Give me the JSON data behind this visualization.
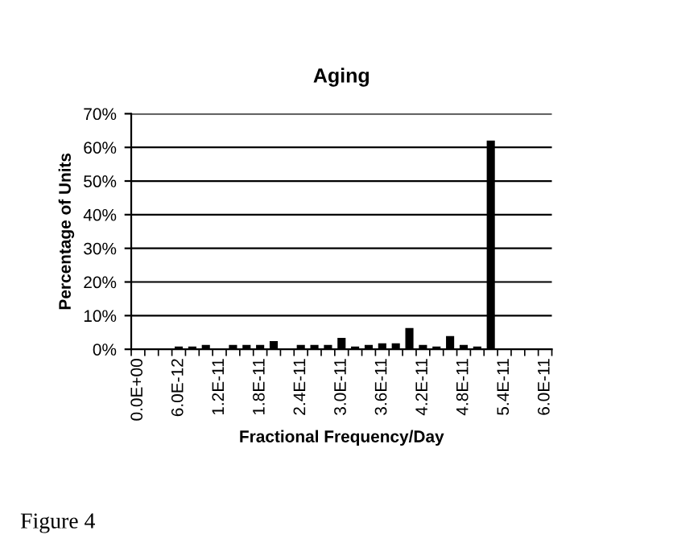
{
  "chart_data": {
    "type": "bar",
    "title": "Aging",
    "xlabel": "Fractional Frequency/Day",
    "ylabel": "Percentage of Units",
    "categories": [
      "0.0E+00",
      null,
      null,
      "6.0E-12",
      null,
      null,
      "1.2E-11",
      null,
      null,
      "1.8E-11",
      null,
      null,
      "2.4E-11",
      null,
      null,
      "3.0E-11",
      null,
      null,
      "3.6E-11",
      null,
      null,
      "4.2E-11",
      null,
      null,
      "4.8E-11",
      null,
      null,
      "5.4E-11",
      null,
      null,
      "6.0E-11"
    ],
    "values": [
      0,
      0,
      0,
      0.8,
      0.8,
      1.3,
      0,
      1.3,
      1.3,
      1.3,
      2.4,
      0,
      1.3,
      1.3,
      1.3,
      3.4,
      0.8,
      1.3,
      1.8,
      1.8,
      6.3,
      1.3,
      0.8,
      3.9,
      1.3,
      0.8,
      62,
      0,
      0,
      0,
      0
    ],
    "color": "#000000",
    "ylim": [
      0,
      70
    ],
    "yticks": [
      {
        "value": 0,
        "label": "0%"
      },
      {
        "value": 10,
        "label": "10%"
      },
      {
        "value": 20,
        "label": "20%"
      },
      {
        "value": 30,
        "label": "30%"
      },
      {
        "value": 40,
        "label": "40%"
      },
      {
        "value": 50,
        "label": "50%"
      },
      {
        "value": 60,
        "label": "60%"
      },
      {
        "value": 70,
        "label": "70%"
      }
    ],
    "grid": "y",
    "annotations": [
      "Figure 4"
    ]
  }
}
